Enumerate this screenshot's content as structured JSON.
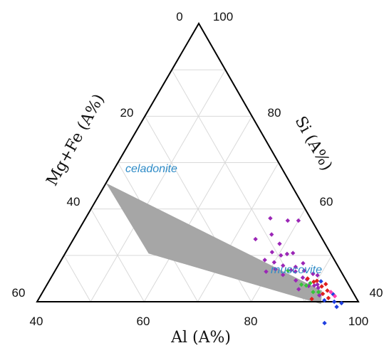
{
  "chart_data": {
    "type": "scatter",
    "subtype": "ternary",
    "axes": {
      "bottom": {
        "label": "Al (A%)",
        "range": [
          40,
          100
        ],
        "ticks": [
          "40",
          "60",
          "80",
          "100"
        ]
      },
      "left": {
        "label": "Mg+Fe (A%)",
        "range": [
          0,
          60
        ],
        "ticks": [
          "0",
          "20",
          "40",
          "60"
        ]
      },
      "right": {
        "label": "Si (A%)",
        "range": [
          40,
          100
        ],
        "ticks": [
          "100",
          "80",
          "60",
          "40"
        ]
      }
    },
    "grid": true,
    "grid_color": "#d9d9d9",
    "region": {
      "color": "#a6a6a6",
      "vertices": [
        {
          "al": 40.0,
          "mg": 34.4,
          "si": 74.4
        },
        {
          "al": 55.6,
          "mg": 34.0,
          "si": 78.4
        },
        {
          "al": 93.3,
          "mg": 7.2,
          "si": 53.9
        },
        {
          "al": 92.0,
          "mg": 5.6,
          "si": 53.6
        }
      ]
    },
    "annotations": [
      {
        "text": "celadonite",
        "color": "#2e8bc7"
      },
      {
        "text": "muscovite",
        "color": "#2e8bc7"
      }
    ],
    "colors": {
      "purple": "#9b26b6",
      "green": "#37c43a",
      "red": "#e01e1e",
      "blue": "#1f3fe0",
      "pink": "#ff3fb0"
    },
    "series": [
      {
        "color": "purple",
        "points": [
          {
            "al": 74.0,
            "mg": 12.5
          },
          {
            "al": 78.0,
            "mg": 13.0
          },
          {
            "al": 79.5,
            "mg": 14.0
          },
          {
            "al": 80.0,
            "mg": 11.5
          },
          {
            "al": 81.0,
            "mg": 12.0
          },
          {
            "al": 78.5,
            "mg": 10.8
          },
          {
            "al": 74.5,
            "mg": 7.5
          },
          {
            "al": 76.5,
            "mg": 9.0
          },
          {
            "al": 79.0,
            "mg": 8.5
          },
          {
            "al": 80.5,
            "mg": 9.5
          },
          {
            "al": 81.5,
            "mg": 8.2
          },
          {
            "al": 82.0,
            "mg": 10.2
          },
          {
            "al": 83.0,
            "mg": 11.2
          },
          {
            "al": 84.0,
            "mg": 9.2
          },
          {
            "al": 85.0,
            "mg": 8.5
          },
          {
            "al": 86.0,
            "mg": 9.4
          },
          {
            "al": 87.0,
            "mg": 7.8
          },
          {
            "al": 88.0,
            "mg": 7.2
          },
          {
            "al": 89.0,
            "mg": 7.6
          },
          {
            "al": 90.0,
            "mg": 6.5
          },
          {
            "al": 82.5,
            "mg": 7.0
          },
          {
            "al": 85.5,
            "mg": 6.2
          },
          {
            "al": 88.5,
            "mg": 5.5
          },
          {
            "al": 91.0,
            "mg": 6.0
          },
          {
            "al": 92.0,
            "mg": 6.6
          },
          {
            "al": 80.0,
            "mg": 2.5
          },
          {
            "al": 78.0,
            "mg": 4.5
          },
          {
            "al": 84.5,
            "mg": 8.0
          },
          {
            "al": 86.5,
            "mg": 6.8
          },
          {
            "al": 89.5,
            "mg": 4.8
          },
          {
            "al": 90.5,
            "mg": 5.8
          },
          {
            "al": 87.5,
            "mg": 9.8
          }
        ]
      },
      {
        "color": "green",
        "points": [
          {
            "al": 83.5,
            "mg": 9.8
          },
          {
            "al": 87.5,
            "mg": 8.8
          },
          {
            "al": 88.5,
            "mg": 8.0
          },
          {
            "al": 89.0,
            "mg": 7.0
          },
          {
            "al": 91.5,
            "mg": 6.4
          },
          {
            "al": 90.5,
            "mg": 7.4
          }
        ]
      },
      {
        "color": "red",
        "points": [
          {
            "al": 88.0,
            "mg": 7.0
          },
          {
            "al": 90.0,
            "mg": 5.5
          },
          {
            "al": 91.5,
            "mg": 5.2
          },
          {
            "al": 92.5,
            "mg": 5.8
          },
          {
            "al": 93.0,
            "mg": 4.6
          },
          {
            "al": 94.0,
            "mg": 5.2
          },
          {
            "al": 92.0,
            "mg": 4.2
          },
          {
            "al": 89.5,
            "mg": 6.2
          },
          {
            "al": 91.0,
            "mg": 8.4
          }
        ]
      },
      {
        "color": "blue",
        "points": [
          {
            "al": 90.8,
            "mg": 4.8
          },
          {
            "al": 94.5,
            "mg": 3.9
          },
          {
            "al": 95.5,
            "mg": 4.5
          },
          {
            "al": 96.5,
            "mg": 4.6
          },
          {
            "al": 97.0,
            "mg": 3.3
          },
          {
            "al": 96.0,
            "mg": 8.6
          },
          {
            "al": 93.5,
            "mg": 6.2
          }
        ]
      },
      {
        "color": "pink",
        "points": [
          {
            "al": 93.8,
            "mg": 4.1
          },
          {
            "al": 95.0,
            "mg": 3.8
          }
        ]
      }
    ]
  }
}
